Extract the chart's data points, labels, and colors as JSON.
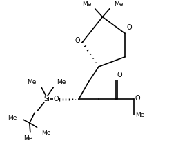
{
  "bg_color": "#ffffff",
  "line_color": "#000000",
  "lw": 1.2,
  "fs": 7.0,
  "figsize": [
    2.84,
    2.08
  ],
  "dpi": 100,
  "xlim": [
    0.0,
    1.0
  ],
  "ylim": [
    0.05,
    0.95
  ]
}
